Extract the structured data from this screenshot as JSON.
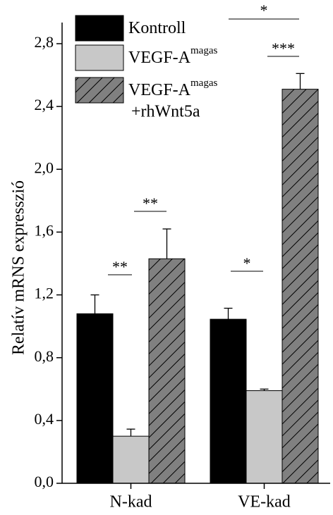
{
  "chart_data": {
    "type": "bar",
    "y_label": "Relatív mRNS expresszió",
    "categories": [
      "N-kad",
      "VE-kad"
    ],
    "series": [
      {
        "name": "Kontroll",
        "color": "#000000",
        "values": [
          1.08,
          1.045
        ],
        "errors": [
          0.12,
          0.07
        ]
      },
      {
        "name": "VEGF-A",
        "name_sup": "magas",
        "color": "#c8c8c8",
        "values": [
          0.3,
          0.59
        ],
        "errors": [
          0.045,
          0.01
        ]
      },
      {
        "name": "VEGF-A",
        "name_sup": "magas",
        "name_line2": "+rhWnt5a",
        "color": "#808080",
        "hatch": true,
        "values": [
          1.43,
          2.51
        ],
        "errors": [
          0.19,
          0.1
        ]
      }
    ],
    "ylim": [
      0,
      2.8
    ],
    "yticks": [
      {
        "value": 0,
        "label": "0,0"
      },
      {
        "value": 0.4,
        "label": "0,4"
      },
      {
        "value": 0.8,
        "label": "0,8"
      },
      {
        "value": 1.2,
        "label": "1,2"
      },
      {
        "value": 1.6,
        "label": "1,6"
      },
      {
        "value": 2.0,
        "label": "2,0"
      },
      {
        "value": 2.4,
        "label": "2,4"
      },
      {
        "value": 2.8,
        "label": "2,8"
      }
    ],
    "annotations": [
      "**",
      "**",
      "*",
      "***",
      "*"
    ]
  }
}
